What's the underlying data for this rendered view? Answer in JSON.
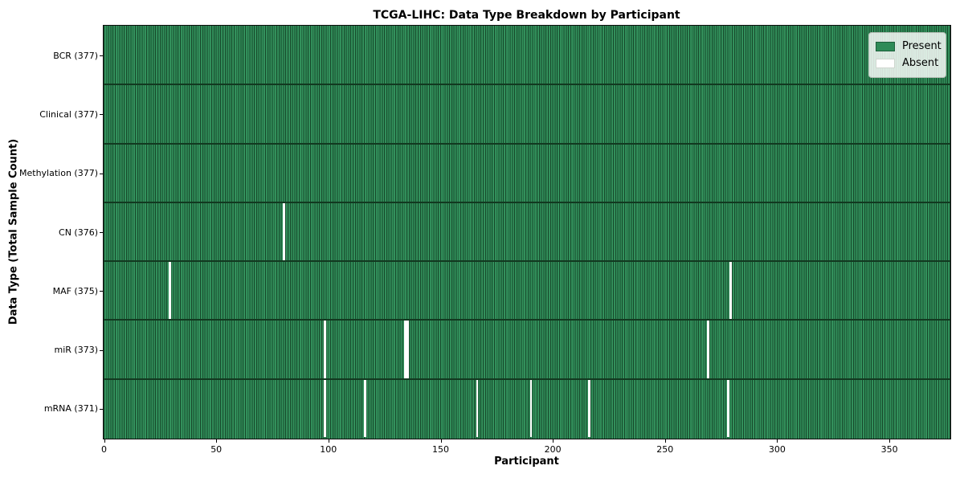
{
  "title": "TCGA-LIHC: Data Type Breakdown by Participant",
  "colors": {
    "present": "#2e8b57",
    "present_light": "#36945f",
    "absent": "#ffffff",
    "cell_border": "#17492b",
    "row_border": "#123920",
    "axis": "#000000",
    "legend_border": "#b2bcb2",
    "swatch_present_border": "#1c5e3a",
    "swatch_absent_border": "#cfd6cf"
  },
  "chart_data": {
    "type": "heatmap",
    "title": "TCGA-LIHC: Data Type Breakdown by Participant",
    "xlabel": "Participant",
    "ylabel": "Data Type (Total Sample Count)",
    "x_ticks": [
      0,
      50,
      100,
      150,
      200,
      250,
      300,
      350
    ],
    "xlim": [
      0,
      377
    ],
    "n_participants": 377,
    "grid": false,
    "legend_position": "upper right",
    "legend": [
      {
        "label": "Present",
        "color": "#2e8b57"
      },
      {
        "label": "Absent",
        "color": "#ffffff"
      }
    ],
    "rows": [
      {
        "name": "BCR",
        "total": 377,
        "tick_label": "BCR (377)",
        "absent_participants": []
      },
      {
        "name": "Clinical",
        "total": 377,
        "tick_label": "Clinical (377)",
        "absent_participants": []
      },
      {
        "name": "Methylation",
        "total": 377,
        "tick_label": "Methylation (377)",
        "absent_participants": []
      },
      {
        "name": "CN",
        "total": 376,
        "tick_label": "CN (376)",
        "absent_participants": [
          80
        ]
      },
      {
        "name": "MAF",
        "total": 375,
        "tick_label": "MAF (375)",
        "absent_participants": [
          29,
          279
        ]
      },
      {
        "name": "miR",
        "total": 373,
        "tick_label": "miR (373)",
        "absent_participants": [
          98,
          134,
          135,
          269
        ]
      },
      {
        "name": "mRNA",
        "total": 371,
        "tick_label": "mRNA (371)",
        "absent_participants": [
          98,
          116,
          166,
          190,
          216,
          278
        ]
      }
    ]
  }
}
